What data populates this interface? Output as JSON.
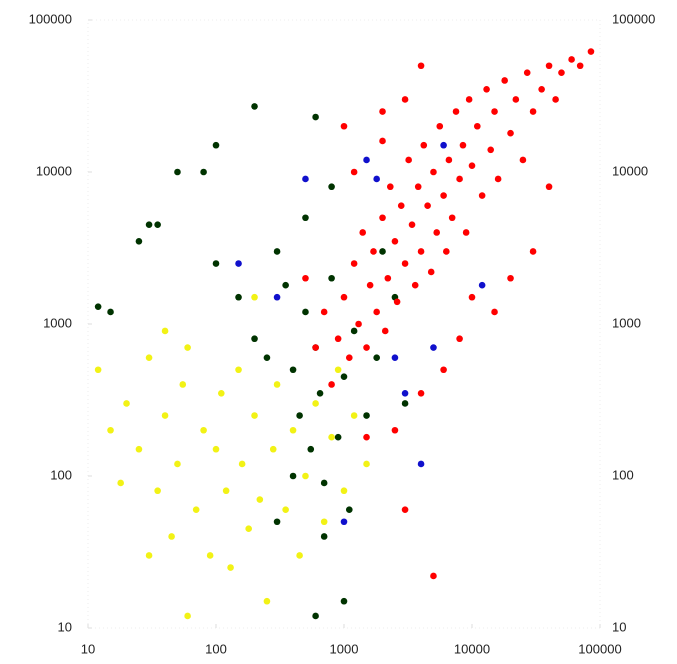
{
  "chart_data": {
    "type": "scatter",
    "xscale": "log",
    "yscale": "log",
    "xlim": [
      10,
      100000
    ],
    "ylim": [
      10,
      100000
    ],
    "xticks": [
      10,
      100,
      1000,
      10000,
      100000
    ],
    "yticks": [
      10,
      100,
      1000,
      10000,
      100000
    ],
    "series": [
      {
        "color": "#f2f215",
        "x": [
          12,
          15,
          18,
          20,
          25,
          30,
          35,
          40,
          45,
          50,
          55,
          60,
          70,
          80,
          90,
          100,
          110,
          120,
          130,
          150,
          160,
          180,
          200,
          220,
          250,
          280,
          300,
          350,
          400,
          450,
          500,
          600,
          700,
          800,
          900,
          1000,
          1200,
          1500,
          60,
          40,
          200,
          30
        ],
        "values": [
          500,
          200,
          90,
          300,
          150,
          600,
          80,
          250,
          40,
          120,
          400,
          700,
          60,
          200,
          30,
          150,
          350,
          80,
          25,
          500,
          120,
          45,
          250,
          70,
          15,
          150,
          400,
          60,
          200,
          30,
          100,
          300,
          50,
          180,
          500,
          80,
          250,
          120,
          12,
          900,
          1500,
          30
        ]
      },
      {
        "color": "#003300",
        "x": [
          12,
          15,
          25,
          30,
          35,
          50,
          80,
          100,
          200,
          600,
          100,
          150,
          200,
          250,
          300,
          350,
          400,
          450,
          500,
          550,
          600,
          650,
          700,
          800,
          900,
          1000,
          1100,
          1200,
          1500,
          1800,
          2000,
          2500,
          3000,
          400,
          700,
          1000,
          600,
          500,
          800,
          300
        ],
        "values": [
          1300,
          1200,
          3500,
          4500,
          4500,
          10000,
          10000,
          15000,
          27000,
          23000,
          2500,
          1500,
          800,
          600,
          3000,
          1800,
          500,
          250,
          1200,
          150,
          700,
          350,
          90,
          2000,
          180,
          450,
          60,
          900,
          250,
          600,
          3000,
          1500,
          300,
          100,
          40,
          15,
          12,
          5000,
          8000,
          50
        ]
      },
      {
        "color": "#1010cc",
        "x": [
          150,
          300,
          500,
          1500,
          1800,
          2500,
          3000,
          4000,
          1000,
          12000,
          6000,
          5000
        ],
        "values": [
          2500,
          1500,
          9000,
          12000,
          9000,
          600,
          350,
          120,
          50,
          1800,
          15000,
          700
        ]
      },
      {
        "color": "#ff0000",
        "x": [
          800,
          900,
          1000,
          1100,
          1200,
          1300,
          1400,
          1500,
          1600,
          1700,
          1800,
          2000,
          2100,
          2200,
          2300,
          2500,
          2600,
          2800,
          3000,
          3200,
          3400,
          3600,
          3800,
          4000,
          4200,
          4500,
          4800,
          5000,
          5300,
          5600,
          6000,
          6300,
          6600,
          7000,
          7500,
          8000,
          8500,
          9000,
          9500,
          10000,
          11000,
          12000,
          13000,
          14000,
          15000,
          16000,
          18000,
          20000,
          22000,
          25000,
          27000,
          30000,
          35000,
          40000,
          45000,
          50000,
          60000,
          70000,
          85000,
          20000,
          15000,
          8000,
          6000,
          4000,
          2500,
          700,
          600,
          500,
          1200,
          1000,
          2000,
          30000,
          40000,
          5000,
          3000,
          1500,
          2000,
          3000,
          4000,
          10000
        ],
        "values": [
          400,
          800,
          1500,
          600,
          2500,
          1000,
          4000,
          700,
          1800,
          3000,
          1200,
          5000,
          900,
          2000,
          8000,
          3500,
          1400,
          6000,
          2500,
          12000,
          4500,
          1800,
          8000,
          3000,
          15000,
          6000,
          2200,
          10000,
          4000,
          20000,
          7000,
          3000,
          12000,
          5000,
          25000,
          9000,
          15000,
          4000,
          30000,
          11000,
          20000,
          7000,
          35000,
          14000,
          25000,
          9000,
          40000,
          18000,
          30000,
          12000,
          45000,
          25000,
          35000,
          50000,
          30000,
          45000,
          55000,
          50000,
          62000,
          2000,
          1200,
          800,
          500,
          350,
          200,
          1200,
          700,
          2000,
          10000,
          20000,
          25000,
          3000,
          8000,
          22,
          60,
          180,
          16000,
          30000,
          50000,
          1500
        ]
      }
    ]
  }
}
